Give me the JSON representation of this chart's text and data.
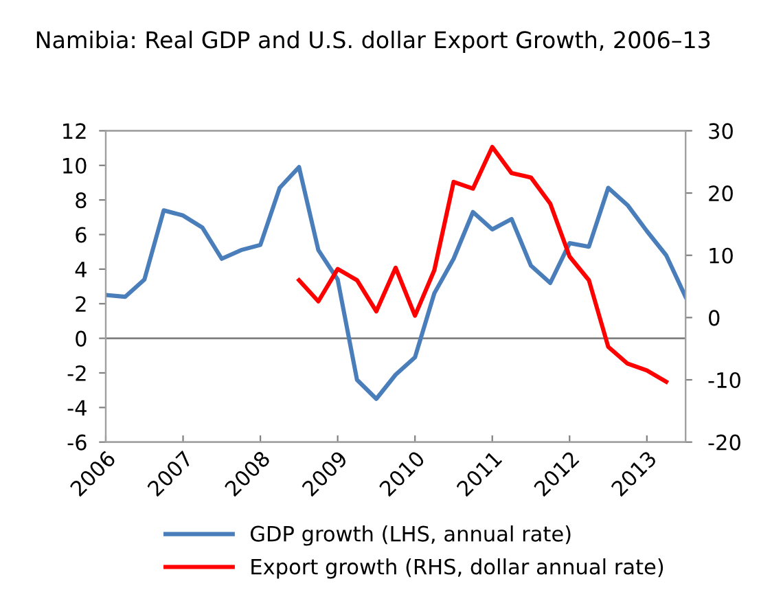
{
  "chart_data": {
    "type": "line",
    "title": "Namibia: Real GDP and U.S. dollar Export Growth, 2006–13",
    "x": [
      2006,
      2006.25,
      2006.5,
      2006.75,
      2007,
      2007.25,
      2007.5,
      2007.75,
      2008,
      2008.25,
      2008.5,
      2008.75,
      2009,
      2009.25,
      2009.5,
      2009.75,
      2010,
      2010.25,
      2010.5,
      2010.75,
      2011,
      2011.25,
      2011.5,
      2011.75,
      2012,
      2012.25,
      2012.5,
      2012.75,
      2013,
      2013.25,
      2013.5
    ],
    "series": [
      {
        "name": "GDP growth (LHS, annual rate)",
        "color": "#4a7ebb",
        "values": [
          2.5,
          2.4,
          3.4,
          7.4,
          7.1,
          6.4,
          4.6,
          5.1,
          5.4,
          8.7,
          9.9,
          5.1,
          3.4,
          -2.4,
          -3.5,
          -2.1,
          -1.1,
          2.6,
          4.6,
          7.3,
          6.3,
          6.9,
          4.2,
          3.2,
          5.5,
          5.3,
          8.7,
          7.7,
          6.2,
          4.8,
          2.4
        ]
      },
      {
        "name": "Export growth (RHS, dollar annual rate)",
        "color": "#ff0000",
        "axis": "y2",
        "values": [
          null,
          null,
          null,
          null,
          null,
          null,
          null,
          null,
          null,
          null,
          6.0,
          2.6,
          7.8,
          6.0,
          1.0,
          8.0,
          0.3,
          7.6,
          21.8,
          20.7,
          27.4,
          23.2,
          22.5,
          18.3,
          9.8,
          6.0,
          -4.7,
          -7.4,
          -8.5,
          -10.3,
          null
        ]
      }
    ],
    "xlim": [
      2006,
      2013.5
    ],
    "xticks": [
      2006,
      2007,
      2008,
      2009,
      2010,
      2011,
      2012,
      2013
    ],
    "ylim": [
      -6,
      12
    ],
    "yticks": [
      -6,
      -4,
      -2,
      0,
      2,
      4,
      6,
      8,
      10,
      12
    ],
    "y2lim": [
      -20,
      30
    ],
    "y2ticks": [
      -20,
      -10,
      0,
      10,
      20,
      30
    ],
    "ref_lines": [
      {
        "axis": "y",
        "value": 0,
        "color": "#808080"
      }
    ],
    "grid": false,
    "legend": "bottom",
    "marker": "none",
    "line_style": "solid"
  }
}
